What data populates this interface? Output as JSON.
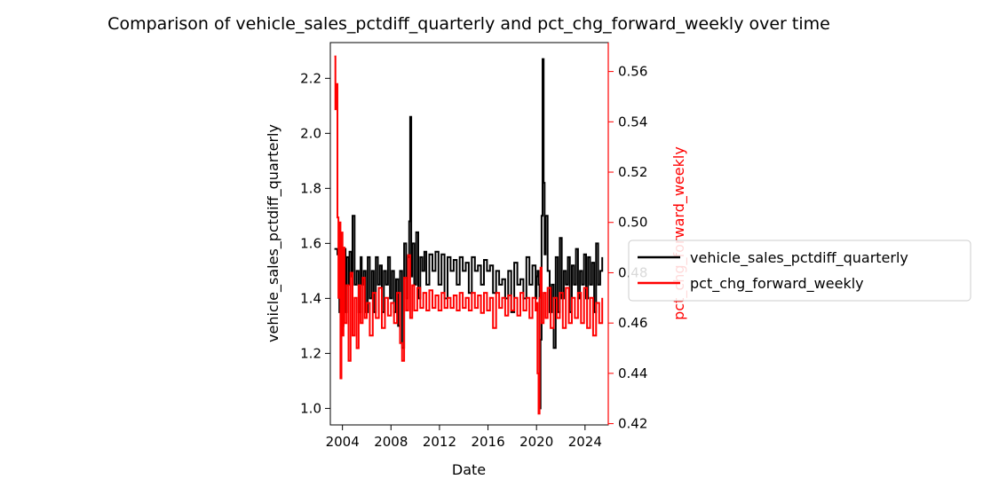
{
  "chart_data": {
    "type": "line",
    "title": "Comparison of vehicle_sales_pctdiff_quarterly and pct_chg_forward_weekly over time",
    "xlabel": "Date",
    "ylabel_left": "vehicle_sales_pctdiff_quarterly",
    "ylabel_right": "pct_chg_forward_weekly",
    "x_ticks": [
      "2004",
      "2008",
      "2012",
      "2016",
      "2020",
      "2024"
    ],
    "x_range": [
      "2003-01",
      "2025-12"
    ],
    "y_left_ticks": [
      "1.0",
      "1.2",
      "1.4",
      "1.6",
      "1.8",
      "2.0",
      "2.2"
    ],
    "y_left_range": [
      0.94,
      2.33
    ],
    "y_right_ticks": [
      "0.42",
      "0.44",
      "0.46",
      "0.48",
      "0.50",
      "0.52",
      "0.54",
      "0.56"
    ],
    "y_right_range": [
      0.4195,
      0.5715
    ],
    "grid": false,
    "legend_position": "center-right-outside",
    "series": [
      {
        "name": "vehicle_sales_pctdiff_quarterly",
        "axis": "left",
        "color": "#000000",
        "x": [
          "2003-05",
          "2003-08",
          "2003-10",
          "2003-11",
          "2004-01",
          "2004-02",
          "2004-04",
          "2004-05",
          "2004-07",
          "2004-08",
          "2004-10",
          "2004-11",
          "2005-01",
          "2005-03",
          "2005-05",
          "2005-07",
          "2005-08",
          "2005-10",
          "2005-12",
          "2006-02",
          "2006-04",
          "2006-06",
          "2006-08",
          "2006-10",
          "2006-12",
          "2007-02",
          "2007-04",
          "2007-06",
          "2007-08",
          "2007-10",
          "2007-12",
          "2008-02",
          "2008-04",
          "2008-06",
          "2008-08",
          "2008-10",
          "2008-12",
          "2009-02",
          "2009-04",
          "2009-06",
          "2009-07",
          "2009-08",
          "2009-09",
          "2009-10",
          "2009-12",
          "2010-02",
          "2010-04",
          "2010-06",
          "2010-08",
          "2010-10",
          "2010-12",
          "2011-03",
          "2011-06",
          "2011-09",
          "2011-12",
          "2012-03",
          "2012-06",
          "2012-09",
          "2012-12",
          "2013-03",
          "2013-06",
          "2013-09",
          "2013-12",
          "2014-03",
          "2014-06",
          "2014-09",
          "2014-12",
          "2015-03",
          "2015-06",
          "2015-09",
          "2015-12",
          "2016-03",
          "2016-06",
          "2016-09",
          "2016-12",
          "2017-03",
          "2017-06",
          "2017-09",
          "2017-12",
          "2018-03",
          "2018-06",
          "2018-09",
          "2018-12",
          "2019-03",
          "2019-06",
          "2019-09",
          "2019-12",
          "2020-01",
          "2020-02",
          "2020-03",
          "2020-04",
          "2020-05",
          "2020-06",
          "2020-07",
          "2020-08",
          "2020-09",
          "2020-10",
          "2020-12",
          "2021-02",
          "2021-04",
          "2021-06",
          "2021-08",
          "2021-10",
          "2021-12",
          "2022-02",
          "2022-04",
          "2022-06",
          "2022-08",
          "2022-10",
          "2022-12",
          "2023-02",
          "2023-04",
          "2023-06",
          "2023-08",
          "2023-10",
          "2023-12",
          "2024-02",
          "2024-04",
          "2024-06",
          "2024-08",
          "2024-10",
          "2024-12",
          "2025-02",
          "2025-04",
          "2025-06"
        ],
        "y": [
          1.58,
          1.56,
          1.35,
          1.45,
          1.3,
          1.58,
          1.35,
          1.55,
          1.45,
          1.57,
          1.48,
          1.7,
          1.45,
          1.5,
          1.35,
          1.55,
          1.45,
          1.5,
          1.35,
          1.55,
          1.4,
          1.5,
          1.35,
          1.55,
          1.45,
          1.52,
          1.35,
          1.5,
          1.45,
          1.55,
          1.4,
          1.5,
          1.35,
          1.47,
          1.3,
          1.5,
          1.22,
          1.6,
          1.4,
          1.55,
          1.68,
          2.06,
          1.48,
          1.6,
          1.45,
          1.64,
          1.4,
          1.55,
          1.5,
          1.57,
          1.45,
          1.56,
          1.5,
          1.57,
          1.45,
          1.56,
          1.4,
          1.55,
          1.5,
          1.54,
          1.45,
          1.55,
          1.5,
          1.53,
          1.42,
          1.55,
          1.5,
          1.52,
          1.45,
          1.54,
          1.5,
          1.52,
          1.42,
          1.5,
          1.45,
          1.47,
          1.4,
          1.5,
          1.35,
          1.53,
          1.45,
          1.47,
          1.4,
          1.55,
          1.45,
          1.52,
          1.4,
          1.48,
          1.5,
          1.45,
          1.0,
          1.25,
          1.7,
          2.27,
          1.82,
          1.56,
          1.7,
          1.5,
          1.35,
          1.45,
          1.22,
          1.55,
          1.35,
          1.62,
          1.4,
          1.5,
          1.45,
          1.55,
          1.35,
          1.52,
          1.45,
          1.58,
          1.4,
          1.5,
          1.45,
          1.56,
          1.4,
          1.55,
          1.45,
          1.53,
          1.35,
          1.6,
          1.45,
          1.5,
          1.55
        ]
      },
      {
        "name": "pct_chg_forward_weekly",
        "axis": "right",
        "color": "#ff0000",
        "x": [
          "2003-05",
          "2003-06",
          "2003-07",
          "2003-08",
          "2003-09",
          "2003-10",
          "2003-11",
          "2003-12",
          "2004-01",
          "2004-02",
          "2004-03",
          "2004-05",
          "2004-07",
          "2004-09",
          "2004-11",
          "2005-01",
          "2005-03",
          "2005-05",
          "2005-07",
          "2005-09",
          "2005-11",
          "2006-01",
          "2006-04",
          "2006-07",
          "2006-10",
          "2007-01",
          "2007-04",
          "2007-07",
          "2007-10",
          "2008-01",
          "2008-04",
          "2008-07",
          "2008-10",
          "2008-12",
          "2009-02",
          "2009-04",
          "2009-06",
          "2009-08",
          "2009-10",
          "2009-12",
          "2010-03",
          "2010-06",
          "2010-09",
          "2010-12",
          "2011-03",
          "2011-06",
          "2011-09",
          "2011-12",
          "2012-03",
          "2012-06",
          "2012-09",
          "2012-12",
          "2013-03",
          "2013-06",
          "2013-09",
          "2013-12",
          "2014-03",
          "2014-06",
          "2014-09",
          "2014-12",
          "2015-03",
          "2015-06",
          "2015-09",
          "2015-12",
          "2016-03",
          "2016-06",
          "2016-09",
          "2016-12",
          "2017-03",
          "2017-06",
          "2017-09",
          "2017-12",
          "2018-03",
          "2018-06",
          "2018-09",
          "2018-12",
          "2019-03",
          "2019-06",
          "2019-09",
          "2019-12",
          "2020-01",
          "2020-02",
          "2020-03",
          "2020-04",
          "2020-05",
          "2020-06",
          "2020-08",
          "2020-10",
          "2020-12",
          "2021-03",
          "2021-06",
          "2021-09",
          "2021-12",
          "2022-03",
          "2022-06",
          "2022-09",
          "2022-12",
          "2023-03",
          "2023-06",
          "2023-09",
          "2023-12",
          "2024-03",
          "2024-06",
          "2024-09",
          "2024-12",
          "2025-03",
          "2025-06"
        ],
        "y": [
          0.566,
          0.545,
          0.555,
          0.502,
          0.47,
          0.5,
          0.438,
          0.496,
          0.455,
          0.49,
          0.46,
          0.475,
          0.445,
          0.48,
          0.455,
          0.47,
          0.45,
          0.475,
          0.46,
          0.478,
          0.462,
          0.468,
          0.455,
          0.472,
          0.462,
          0.474,
          0.458,
          0.47,
          0.463,
          0.468,
          0.46,
          0.472,
          0.452,
          0.445,
          0.478,
          0.465,
          0.487,
          0.462,
          0.475,
          0.465,
          0.474,
          0.466,
          0.472,
          0.465,
          0.473,
          0.466,
          0.471,
          0.465,
          0.472,
          0.466,
          0.47,
          0.466,
          0.471,
          0.465,
          0.472,
          0.466,
          0.47,
          0.465,
          0.472,
          0.466,
          0.471,
          0.464,
          0.472,
          0.465,
          0.47,
          0.458,
          0.472,
          0.466,
          0.47,
          0.463,
          0.471,
          0.465,
          0.47,
          0.463,
          0.472,
          0.465,
          0.47,
          0.462,
          0.47,
          0.465,
          0.468,
          0.44,
          0.424,
          0.47,
          0.482,
          0.46,
          0.472,
          0.462,
          0.474,
          0.458,
          0.47,
          0.462,
          0.472,
          0.458,
          0.474,
          0.46,
          0.47,
          0.462,
          0.472,
          0.46,
          0.474,
          0.458,
          0.47,
          0.455,
          0.468,
          0.46,
          0.47
        ]
      }
    ]
  }
}
